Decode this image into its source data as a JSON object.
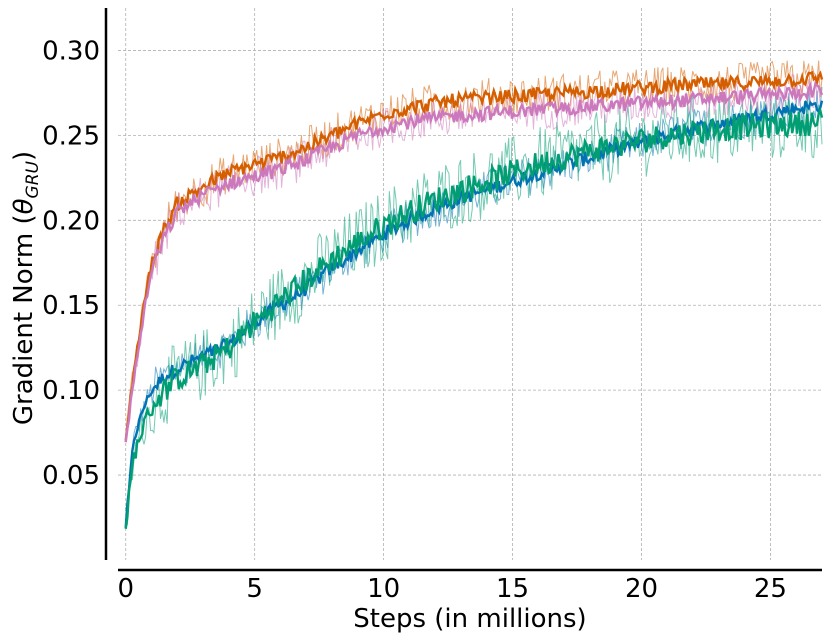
{
  "chart_data": {
    "type": "line",
    "title": "",
    "xlabel": "Steps (in millions)",
    "ylabel_main": "Gradient Norm (",
    "ylabel_theta": "θ",
    "ylabel_sub": "GRU",
    "ylabel_close": ")",
    "xlim": [
      -0.3,
      27
    ],
    "ylim": [
      0.0,
      0.325
    ],
    "xticks": [
      0,
      5,
      10,
      15,
      20,
      25
    ],
    "xtick_labels": [
      "0",
      "5",
      "10",
      "15",
      "20",
      "25"
    ],
    "yticks": [
      0.05,
      0.1,
      0.15,
      0.2,
      0.25,
      0.3
    ],
    "ytick_labels": [
      "0.05",
      "0.10",
      "0.15",
      "0.20",
      "0.25",
      "0.30"
    ],
    "grid": true,
    "legend": "none",
    "x": [
      0,
      0.3,
      0.7,
      1,
      1.5,
      2,
      3,
      4,
      5,
      6,
      7,
      8,
      9,
      10,
      11,
      12,
      13,
      14,
      15,
      16,
      17,
      18,
      19,
      20,
      21,
      22,
      23,
      24,
      25,
      26,
      27
    ],
    "series": [
      {
        "color": "#0173b2",
        "values": [
          0.02,
          0.07,
          0.09,
          0.1,
          0.108,
          0.113,
          0.12,
          0.127,
          0.14,
          0.15,
          0.16,
          0.172,
          0.182,
          0.192,
          0.2,
          0.207,
          0.213,
          0.218,
          0.223,
          0.228,
          0.233,
          0.237,
          0.242,
          0.246,
          0.25,
          0.254,
          0.257,
          0.26,
          0.263,
          0.266,
          0.268
        ],
        "band": 0.012
      },
      {
        "color": "#029e73",
        "values": [
          0.02,
          0.06,
          0.08,
          0.09,
          0.1,
          0.107,
          0.115,
          0.125,
          0.14,
          0.153,
          0.165,
          0.177,
          0.187,
          0.197,
          0.205,
          0.212,
          0.218,
          0.223,
          0.228,
          0.233,
          0.237,
          0.241,
          0.244,
          0.247,
          0.25,
          0.252,
          0.254,
          0.255,
          0.256,
          0.257,
          0.258
        ],
        "band": 0.022
      },
      {
        "color": "#d55e00",
        "values": [
          0.07,
          0.11,
          0.15,
          0.175,
          0.195,
          0.21,
          0.22,
          0.228,
          0.233,
          0.237,
          0.243,
          0.25,
          0.257,
          0.263,
          0.266,
          0.269,
          0.271,
          0.272,
          0.273,
          0.274,
          0.275,
          0.276,
          0.277,
          0.278,
          0.279,
          0.28,
          0.28,
          0.281,
          0.282,
          0.283,
          0.284
        ],
        "band": 0.012
      },
      {
        "color": "#cc78bc",
        "values": [
          0.07,
          0.105,
          0.145,
          0.17,
          0.19,
          0.205,
          0.215,
          0.222,
          0.226,
          0.23,
          0.236,
          0.243,
          0.25,
          0.255,
          0.258,
          0.26,
          0.262,
          0.263,
          0.264,
          0.265,
          0.266,
          0.267,
          0.268,
          0.269,
          0.27,
          0.271,
          0.272,
          0.273,
          0.274,
          0.275,
          0.277
        ],
        "band": 0.012
      }
    ]
  }
}
